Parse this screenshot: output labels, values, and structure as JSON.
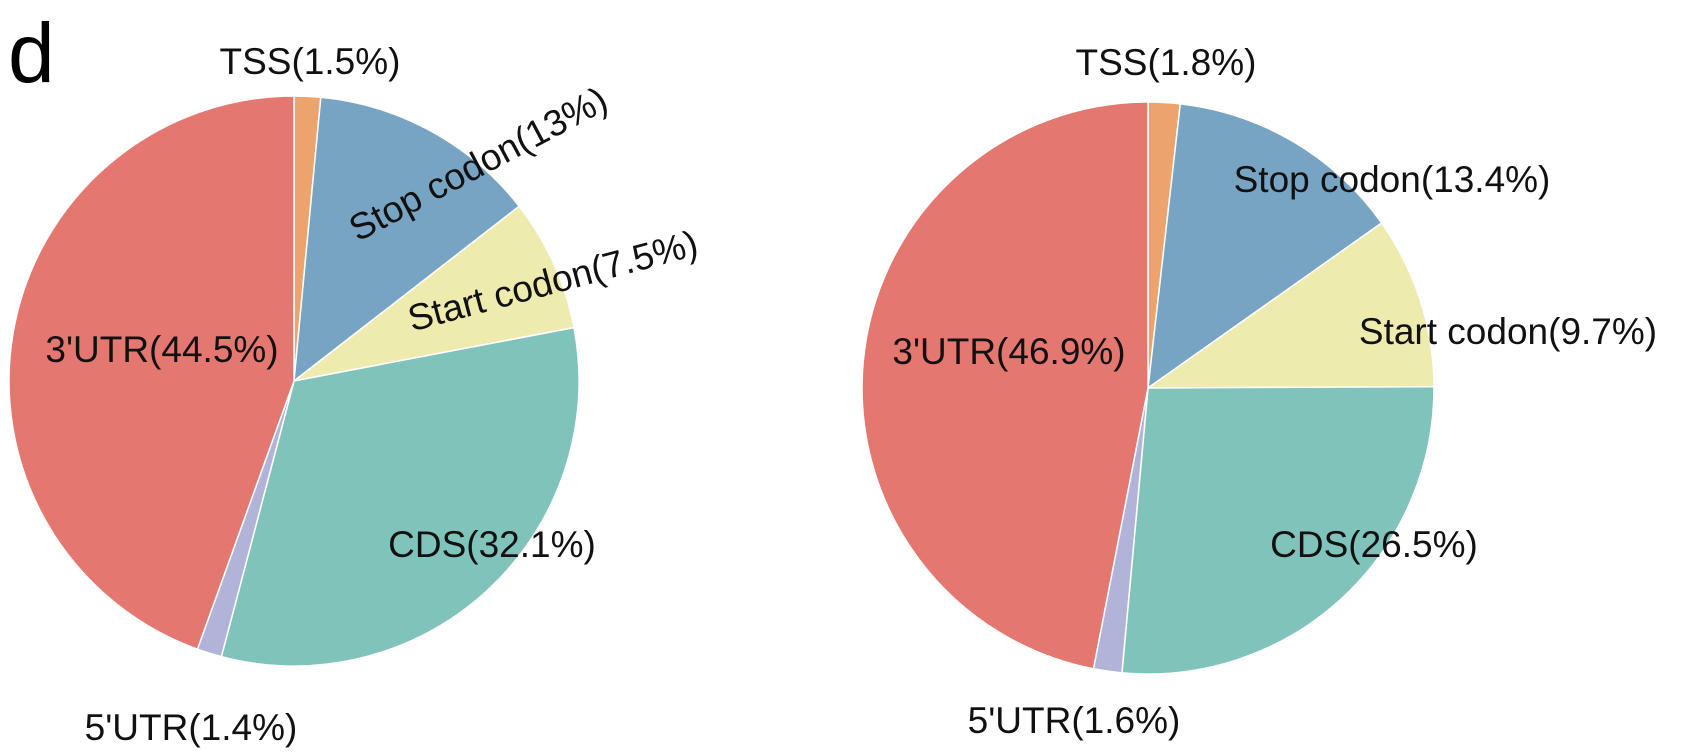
{
  "panel_label": "d",
  "colors": {
    "TSS": "#EDA36D",
    "Stop codon": "#78A4C4",
    "Start codon": "#EDEBAE",
    "CDS": "#7FC3BA",
    "5'UTR": "#B1B3D8",
    "3'UTR": "#E47770"
  },
  "chart_data": [
    {
      "type": "pie",
      "title": "",
      "start_angle_deg": 0,
      "direction": "clockwise",
      "slices": [
        {
          "category": "TSS",
          "value": 1.5,
          "label": "TSS(1.5%)"
        },
        {
          "category": "Stop codon",
          "value": 13.0,
          "label": "Stop codon(13%)"
        },
        {
          "category": "Start codon",
          "value": 7.5,
          "label": "Start codon(7.5%)"
        },
        {
          "category": "CDS",
          "value": 32.1,
          "label": "CDS(32.1%)"
        },
        {
          "category": "5'UTR",
          "value": 1.4,
          "label": "5'UTR(1.4%)"
        },
        {
          "category": "3'UTR",
          "value": 44.5,
          "label": "3'UTR(44.5%)"
        }
      ]
    },
    {
      "type": "pie",
      "title": "",
      "start_angle_deg": 0,
      "direction": "clockwise",
      "slices": [
        {
          "category": "TSS",
          "value": 1.8,
          "label": "TSS(1.8%)"
        },
        {
          "category": "Stop codon",
          "value": 13.4,
          "label": "Stop codon(13.4%)"
        },
        {
          "category": "Start codon",
          "value": 9.7,
          "label": "Start codon(9.7%)"
        },
        {
          "category": "CDS",
          "value": 26.5,
          "label": "CDS(26.5%)"
        },
        {
          "category": "5'UTR",
          "value": 1.6,
          "label": "5'UTR(1.6%)"
        },
        {
          "category": "3'UTR",
          "value": 46.9,
          "label": "3'UTR(46.9%)"
        }
      ]
    }
  ]
}
